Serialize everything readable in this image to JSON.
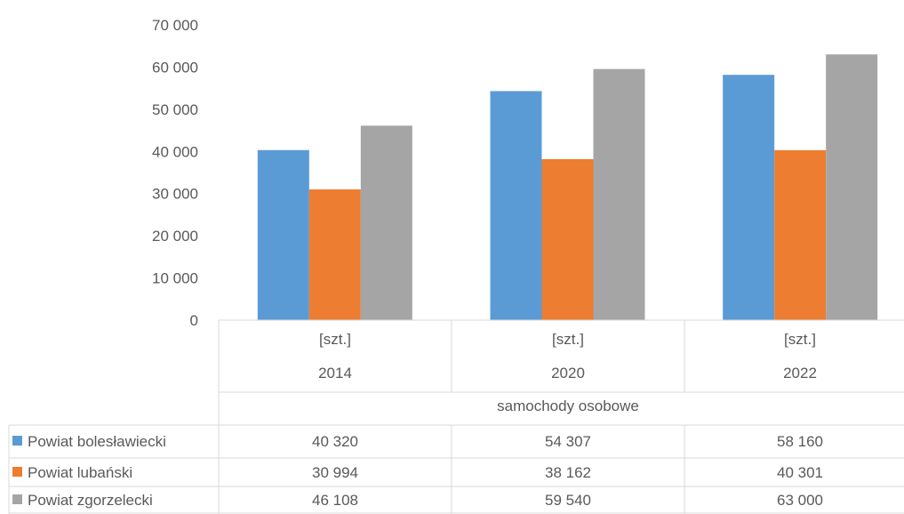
{
  "chart_data": {
    "type": "bar",
    "group_label": "samochody osobowe",
    "unit_labels": [
      "[szt.]",
      "[szt.]",
      "[szt.]"
    ],
    "categories": [
      "2014",
      "2020",
      "2022"
    ],
    "series": [
      {
        "name": "Powiat bolesławiecki",
        "color": "#5b9bd5",
        "values": [
          40320,
          54307,
          58160
        ],
        "labels": [
          "40 320",
          "54 307",
          "58 160"
        ]
      },
      {
        "name": "Powiat lubański",
        "color": "#ed7d31",
        "values": [
          30994,
          38162,
          40301
        ],
        "labels": [
          "30 994",
          "38 162",
          "40 301"
        ]
      },
      {
        "name": "Powiat zgorzelecki",
        "color": "#a5a5a5",
        "values": [
          46108,
          59540,
          63000
        ],
        "labels": [
          "46 108",
          "59 540",
          "63 000"
        ]
      }
    ],
    "y_ticks": [
      "0",
      "10 000",
      "20 000",
      "30 000",
      "40 000",
      "50 000",
      "60 000",
      "70 000"
    ],
    "ylim": [
      0,
      70000
    ],
    "grid": false,
    "legend": "data-table-left"
  }
}
